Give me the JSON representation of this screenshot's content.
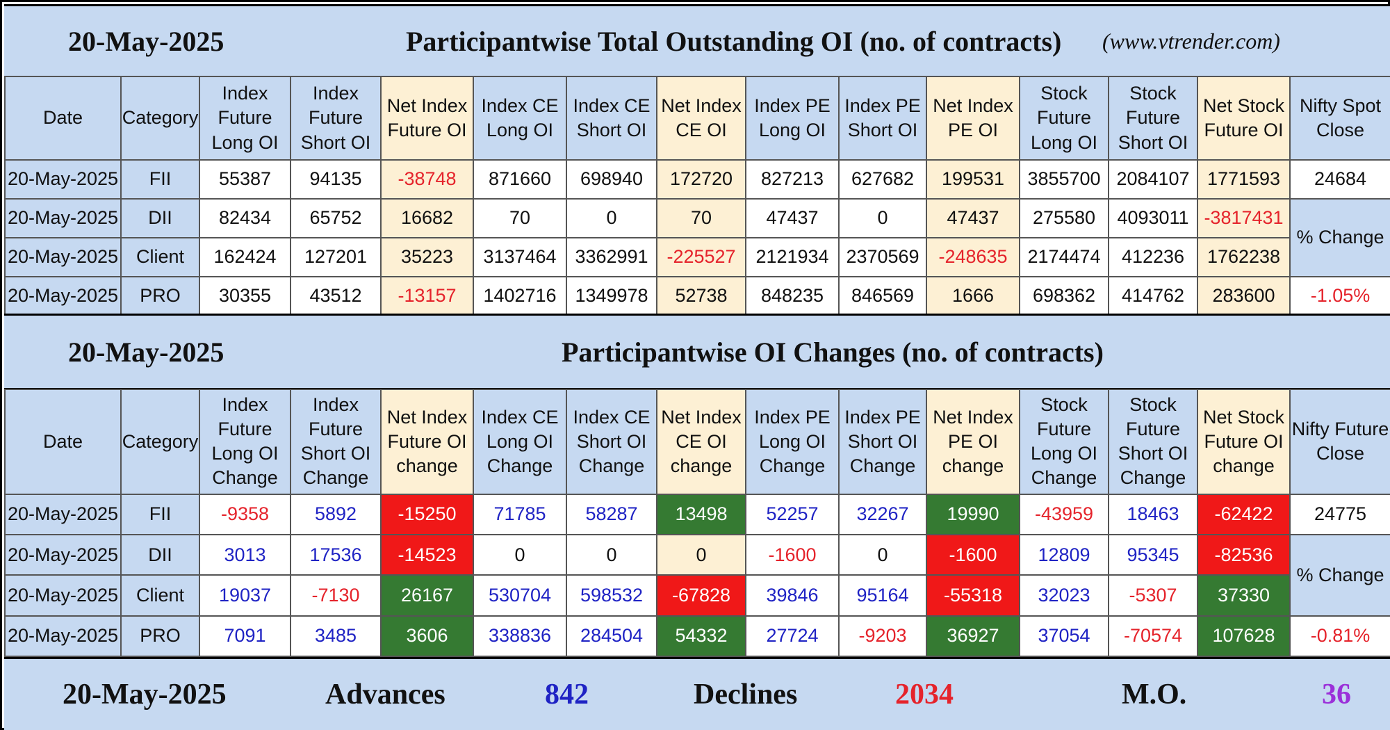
{
  "top_section": {
    "date": "20-May-2025",
    "title": "Participantwise Total Outstanding OI (no. of contracts)",
    "website": "(www.vtrender.com)",
    "headers": [
      "Date",
      "Category",
      "Index Future Long OI",
      "Index Future Short OI",
      "Net Index Future OI",
      "Index CE Long OI",
      "Index CE Short OI",
      "Net Index CE OI",
      "Index PE Long OI",
      "Index PE Short OI",
      "Net Index PE OI",
      "Stock Future Long OI",
      "Stock Future Short OI",
      "Net Stock Future OI",
      "Nifty Spot Close"
    ],
    "rows": [
      {
        "date": "20-May-2025",
        "category": "FII",
        "values": [
          "55387",
          "94135",
          "-38748",
          "871660",
          "698940",
          "172720",
          "827213",
          "627682",
          "199531",
          "3855700",
          "2084107",
          "1771593"
        ]
      },
      {
        "date": "20-May-2025",
        "category": "DII",
        "values": [
          "82434",
          "65752",
          "16682",
          "70",
          "0",
          "70",
          "47437",
          "0",
          "47437",
          "275580",
          "4093011",
          "-3817431"
        ]
      },
      {
        "date": "20-May-2025",
        "category": "Client",
        "values": [
          "162424",
          "127201",
          "35223",
          "3137464",
          "3362991",
          "-225527",
          "2121934",
          "2370569",
          "-248635",
          "2174474",
          "412236",
          "1762238"
        ]
      },
      {
        "date": "20-May-2025",
        "category": "PRO",
        "values": [
          "30355",
          "43512",
          "-13157",
          "1402716",
          "1349978",
          "52738",
          "848235",
          "846569",
          "1666",
          "698362",
          "414762",
          "283600"
        ]
      }
    ],
    "spot_close": "24684",
    "pct_change_label": "% Change",
    "pct_change": "-1.05%"
  },
  "change_section": {
    "date": "20-May-2025",
    "title": "Participantwise OI Changes (no. of contracts)",
    "headers": [
      "Date",
      "Category",
      "Index Future Long OI Change",
      "Index Future Short OI Change",
      "Net Index Future OI change",
      "Index CE Long OI Change",
      "Index CE Short OI Change",
      "Net Index CE OI change",
      "Index PE Long OI Change",
      "Index PE Short OI Change",
      "Net Index PE OI change",
      "Stock Future Long OI Change",
      "Stock Future Short OI Change",
      "Net Stock Future OI change",
      "Nifty Future Close"
    ],
    "rows": [
      {
        "date": "20-May-2025",
        "category": "FII",
        "values": [
          "-9358",
          "5892",
          "-15250",
          "71785",
          "58287",
          "13498",
          "52257",
          "32267",
          "19990",
          "-43959",
          "18463",
          "-62422"
        ]
      },
      {
        "date": "20-May-2025",
        "category": "DII",
        "values": [
          "3013",
          "17536",
          "-14523",
          "0",
          "0",
          "0",
          "-1600",
          "0",
          "-1600",
          "12809",
          "95345",
          "-82536"
        ]
      },
      {
        "date": "20-May-2025",
        "category": "Client",
        "values": [
          "19037",
          "-7130",
          "26167",
          "530704",
          "598532",
          "-67828",
          "39846",
          "95164",
          "-55318",
          "32023",
          "-5307",
          "37330"
        ]
      },
      {
        "date": "20-May-2025",
        "category": "PRO",
        "values": [
          "7091",
          "3485",
          "3606",
          "338836",
          "284504",
          "54332",
          "27724",
          "-9203",
          "36927",
          "37054",
          "-70574",
          "107628"
        ]
      }
    ],
    "future_close": "24775",
    "pct_change_label": "% Change",
    "pct_change": "-0.81%"
  },
  "footer": {
    "date": "20-May-2025",
    "advances_label": "Advances",
    "advances": "842",
    "declines_label": "Declines",
    "declines": "2034",
    "mo_label": "M.O.",
    "mo": "36"
  },
  "colors": {
    "banner_bg": "#c6d9f1",
    "net_col_bg": "#fdf0d4",
    "negative_text": "#e5232b",
    "positive_change_text": "#1f23c4",
    "net_negative_bg": "#f01818",
    "net_positive_bg": "#357a32",
    "mo_text": "#9b30d9"
  }
}
